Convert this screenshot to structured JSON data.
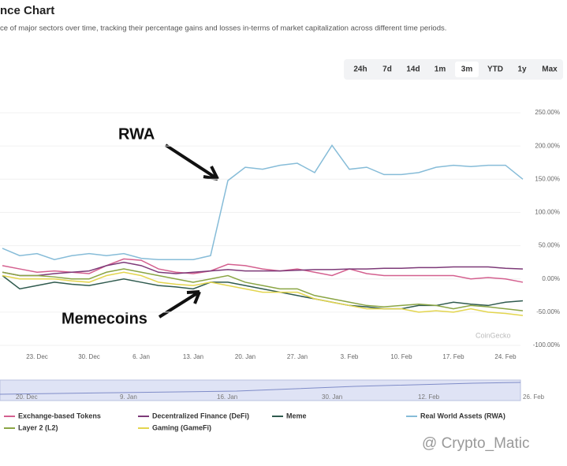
{
  "header": {
    "title": "nce Chart",
    "subtitle": "ce of major sectors over time, tracking their percentage gains and losses in-terms of market capitalization across different time periods."
  },
  "range_buttons": [
    "24h",
    "7d",
    "14d",
    "1m",
    "3m",
    "YTD",
    "1y",
    "Max"
  ],
  "selected_range": "3m",
  "chart_data": {
    "type": "line",
    "categories": [
      null,
      null,
      "23. Dec",
      null,
      null,
      "30. Dec",
      null,
      null,
      "6. Jan",
      null,
      null,
      "13. Jan",
      null,
      null,
      "20. Jan",
      null,
      null,
      "27. Jan",
      null,
      null,
      "3. Feb",
      null,
      null,
      "10. Feb",
      null,
      null,
      "17. Feb",
      null,
      null,
      "24. Feb",
      null
    ],
    "series": [
      {
        "name": "Exchange-based Tokens",
        "color": "#d4608f",
        "values": [
          20,
          15,
          10,
          12,
          10,
          8,
          20,
          30,
          28,
          15,
          10,
          8,
          12,
          22,
          20,
          15,
          12,
          15,
          10,
          5,
          15,
          8,
          5,
          5,
          5,
          5,
          5,
          0,
          2,
          0,
          -5
        ]
      },
      {
        "name": "Decentralized Finance (DeFi)",
        "color": "#7d3a78",
        "values": [
          10,
          5,
          5,
          8,
          10,
          12,
          20,
          25,
          20,
          10,
          8,
          10,
          12,
          14,
          12,
          12,
          12,
          13,
          14,
          14,
          15,
          15,
          16,
          16,
          17,
          17,
          18,
          18,
          18,
          16,
          15
        ]
      },
      {
        "name": "Meme",
        "color": "#2f5a4e",
        "values": [
          5,
          -15,
          -10,
          -5,
          -8,
          -10,
          -5,
          0,
          -5,
          -10,
          -12,
          -15,
          -5,
          -5,
          -10,
          -15,
          -20,
          -25,
          -30,
          -35,
          -40,
          -42,
          -45,
          -45,
          -40,
          -40,
          -35,
          -38,
          -40,
          -35,
          -33
        ]
      },
      {
        "name": "Real World Assets (RWA)",
        "color": "#86bcd8",
        "values": [
          46,
          35,
          38,
          29,
          35,
          38,
          35,
          38,
          31,
          29,
          29,
          29,
          35,
          148,
          168,
          165,
          171,
          174,
          160,
          201,
          165,
          168,
          157,
          157,
          160,
          168,
          171,
          169,
          171,
          171,
          150
        ]
      },
      {
        "name": "Layer 2 (L2)",
        "color": "#8aa544",
        "values": [
          10,
          5,
          5,
          3,
          0,
          0,
          10,
          15,
          10,
          5,
          0,
          -5,
          0,
          5,
          -5,
          -10,
          -15,
          -15,
          -25,
          -30,
          -35,
          -40,
          -42,
          -40,
          -38,
          -40,
          -45,
          -40,
          -42,
          -45,
          -48
        ]
      },
      {
        "name": "Gaming (GameFi)",
        "color": "#e3d54e",
        "values": [
          5,
          0,
          0,
          0,
          -3,
          -5,
          5,
          10,
          5,
          -5,
          -8,
          -10,
          -5,
          -10,
          -15,
          -20,
          -20,
          -20,
          -30,
          -35,
          -40,
          -45,
          -45,
          -45,
          -50,
          -48,
          -50,
          -45,
          -50,
          -52,
          -55
        ]
      }
    ],
    "ylim": [
      -100,
      250
    ],
    "yticks": [
      {
        "value": -100,
        "label": "-100.00%"
      },
      {
        "value": -50,
        "label": "-50.00%"
      },
      {
        "value": 0,
        "label": "0.00%"
      },
      {
        "value": 50,
        "label": "50.00%"
      },
      {
        "value": 100,
        "label": "100.00%"
      },
      {
        "value": 150,
        "label": "150.00%"
      },
      {
        "value": 200,
        "label": "200.00%"
      },
      {
        "value": 250,
        "label": "250.00%"
      }
    ],
    "grid": true,
    "annotations": [
      "RWA",
      "Memecoins"
    ],
    "credit": "CoinGecko",
    "navigator_labels": [
      "20. Dec",
      "9. Jan",
      "16. Jan",
      "30. Jan",
      "12. Feb",
      "26. Feb"
    ]
  },
  "watermark": "@ Crypto_Matic"
}
